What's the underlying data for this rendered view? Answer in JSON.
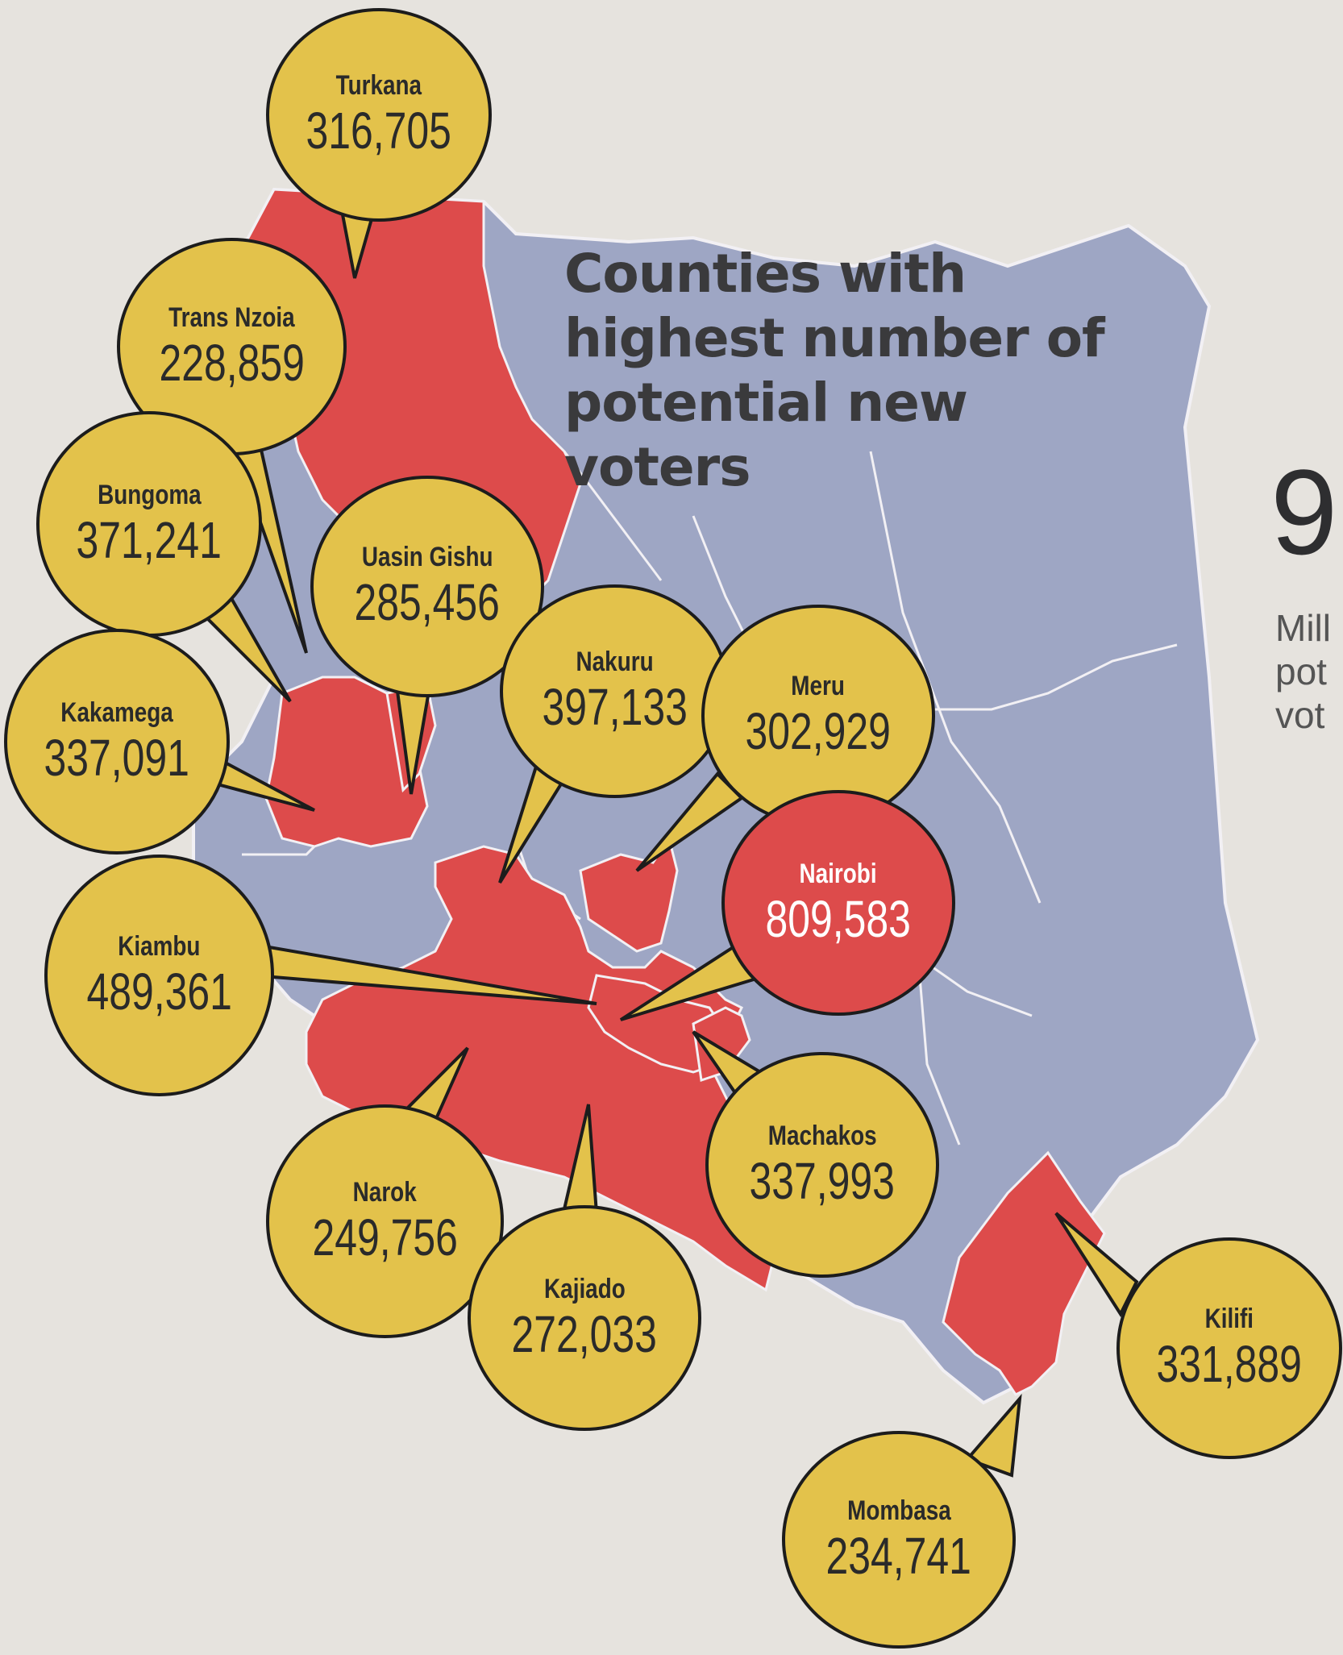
{
  "title": "Counties with highest number of potential new voters",
  "side_stat": {
    "number": "9.",
    "label": "Mill\npot\nvot"
  },
  "colors": {
    "highlighted_county": "#dd4b4b",
    "other_county": "#9ea6c4",
    "county_border": "#f2f0f4",
    "bubble_fill": "#e3c24b",
    "bubble_highlight_fill": "#dd4b4b",
    "background": "#e6e3de"
  },
  "counties": [
    {
      "name": "Turkana",
      "value": "316,705"
    },
    {
      "name": "Trans Nzoia",
      "value": "228,859"
    },
    {
      "name": "Bungoma",
      "value": "371,241"
    },
    {
      "name": "Uasin Gishu",
      "value": "285,456"
    },
    {
      "name": "Kakamega",
      "value": "337,091"
    },
    {
      "name": "Nakuru",
      "value": "397,133"
    },
    {
      "name": "Meru",
      "value": "302,929"
    },
    {
      "name": "Nairobi",
      "value": "809,583"
    },
    {
      "name": "Kiambu",
      "value": "489,361"
    },
    {
      "name": "Machakos",
      "value": "337,993"
    },
    {
      "name": "Narok",
      "value": "249,756"
    },
    {
      "name": "Kajiado",
      "value": "272,033"
    },
    {
      "name": "Kilifi",
      "value": "331,889"
    },
    {
      "name": "Mombasa",
      "value": "234,741"
    }
  ]
}
